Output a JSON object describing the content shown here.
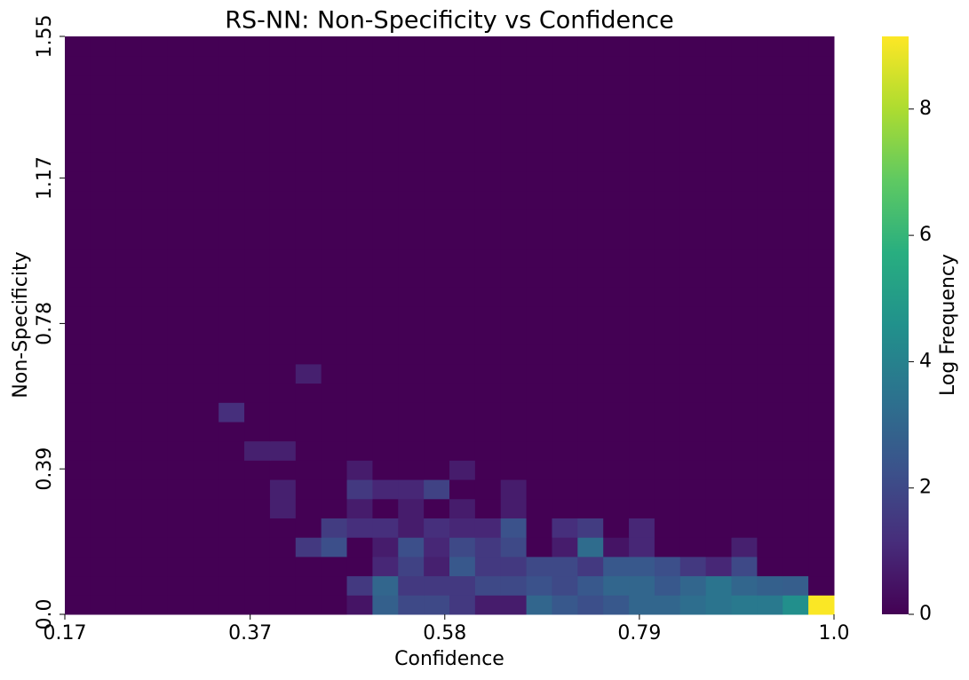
{
  "chart_data": {
    "type": "heatmap",
    "title": "RS-NN: Non-Specificity vs Confidence",
    "x_label": "Confidence",
    "y_label": "Non-Specificity",
    "colorbar_label": "Log Frequency",
    "colormap": "viridis",
    "xlim": [
      0.17,
      1.0
    ],
    "xticks": [
      0.17,
      0.37,
      0.58,
      0.79,
      {
        "value": 1.0,
        "label": "1.0"
      }
    ],
    "ylim": [
      0,
      1.55
    ],
    "yticks": [
      {
        "value": 0,
        "label": "0.0"
      },
      0.39,
      0.78,
      1.17,
      1.55
    ],
    "zlim": [
      0,
      9.15
    ],
    "zticks": [
      0,
      2,
      4,
      6,
      8
    ],
    "z": [
      [
        0,
        0,
        0,
        0,
        0,
        0,
        0,
        0,
        0,
        0,
        0,
        0.5,
        2.8,
        2,
        2,
        1.5,
        0.7,
        0.7,
        3,
        2.5,
        2.2,
        2.5,
        3,
        3,
        3.3,
        3.5,
        3.7,
        3.7,
        4.5,
        9.1
      ],
      [
        0,
        0,
        0,
        0,
        0,
        0,
        0,
        0,
        0,
        0,
        0,
        1.5,
        3,
        1.5,
        1.5,
        1.5,
        2,
        2,
        2.3,
        2,
        2.5,
        3,
        3,
        2.5,
        3,
        3.5,
        3,
        2.8,
        2.7,
        0
      ],
      [
        0,
        0,
        0,
        0,
        0,
        0,
        0,
        0,
        0,
        0,
        0,
        0,
        1,
        1.8,
        0.8,
        2.5,
        1.5,
        1.5,
        2,
        2,
        1.5,
        2.5,
        2.5,
        2.2,
        1.5,
        1,
        2,
        0,
        0,
        0
      ],
      [
        0,
        0,
        0,
        0,
        0,
        0,
        0,
        0,
        0,
        1.5,
        2.2,
        0,
        0.7,
        2.2,
        1,
        2,
        1.5,
        2,
        0,
        0.7,
        3.2,
        0.5,
        1,
        0,
        0,
        0,
        0.8,
        0,
        0,
        0
      ],
      [
        0,
        0,
        0,
        0,
        0,
        0,
        0,
        0,
        0,
        0,
        1.6,
        1.2,
        1.2,
        0.7,
        1.2,
        1,
        1,
        2.3,
        0,
        1.2,
        1.6,
        0,
        1,
        0,
        0,
        0,
        0,
        0,
        0,
        0
      ],
      [
        0,
        0,
        0,
        0,
        0,
        0,
        0,
        0,
        0.8,
        0,
        0,
        0.7,
        0,
        0.7,
        0,
        0.7,
        0,
        0.7,
        0,
        0,
        0,
        0,
        0,
        0,
        0,
        0,
        0,
        0,
        0,
        0
      ],
      [
        0,
        0,
        0,
        0,
        0,
        0,
        0,
        0,
        0.8,
        0,
        0,
        1.5,
        1,
        1,
        1.8,
        0,
        0,
        0.7,
        0,
        0,
        0,
        0,
        0,
        0,
        0,
        0,
        0,
        0,
        0,
        0
      ],
      [
        0,
        0,
        0,
        0,
        0,
        0,
        0,
        0,
        0,
        0,
        0,
        0.7,
        0,
        0,
        0,
        0.7,
        0,
        0,
        0,
        0,
        0,
        0,
        0,
        0,
        0,
        0,
        0,
        0,
        0,
        0
      ],
      [
        0,
        0,
        0,
        0,
        0,
        0,
        0,
        0.8,
        0.8,
        0,
        0,
        0,
        0,
        0,
        0,
        0,
        0,
        0,
        0,
        0,
        0,
        0,
        0,
        0,
        0,
        0,
        0,
        0,
        0,
        0
      ],
      [
        0,
        0,
        0,
        0,
        0,
        0,
        0,
        0,
        0,
        0,
        0,
        0,
        0,
        0,
        0,
        0,
        0,
        0,
        0,
        0,
        0,
        0,
        0,
        0,
        0,
        0,
        0,
        0,
        0,
        0
      ],
      [
        0,
        0,
        0,
        0,
        0,
        0,
        1.2,
        0,
        0,
        0,
        0,
        0,
        0,
        0,
        0,
        0,
        0,
        0,
        0,
        0,
        0,
        0,
        0,
        0,
        0,
        0,
        0,
        0,
        0,
        0
      ],
      [
        0,
        0,
        0,
        0,
        0,
        0,
        0,
        0,
        0,
        0,
        0,
        0,
        0,
        0,
        0,
        0,
        0,
        0,
        0,
        0,
        0,
        0,
        0,
        0,
        0,
        0,
        0,
        0,
        0,
        0
      ],
      [
        0,
        0,
        0,
        0,
        0,
        0,
        0,
        0,
        0,
        0.8,
        0,
        0,
        0,
        0,
        0,
        0,
        0,
        0,
        0,
        0,
        0,
        0,
        0,
        0,
        0,
        0,
        0,
        0,
        0,
        0
      ],
      [
        0,
        0,
        0,
        0,
        0,
        0,
        0,
        0,
        0,
        0,
        0,
        0,
        0,
        0,
        0,
        0,
        0,
        0,
        0,
        0,
        0,
        0,
        0,
        0,
        0,
        0,
        0,
        0,
        0,
        0
      ],
      [
        0,
        0,
        0,
        0,
        0,
        0,
        0,
        0,
        0,
        0,
        0,
        0,
        0,
        0,
        0,
        0,
        0,
        0,
        0,
        0,
        0,
        0,
        0,
        0,
        0,
        0,
        0,
        0,
        0,
        0
      ],
      [
        0,
        0,
        0,
        0,
        0,
        0,
        0,
        0,
        0,
        0,
        0,
        0,
        0,
        0,
        0,
        0,
        0,
        0,
        0,
        0,
        0,
        0,
        0,
        0,
        0,
        0,
        0,
        0,
        0,
        0
      ],
      [
        0,
        0,
        0,
        0,
        0,
        0,
        0,
        0,
        0,
        0,
        0,
        0,
        0,
        0,
        0,
        0,
        0,
        0,
        0,
        0,
        0,
        0,
        0,
        0,
        0,
        0,
        0,
        0,
        0,
        0
      ],
      [
        0,
        0,
        0,
        0,
        0,
        0,
        0,
        0,
        0,
        0,
        0,
        0,
        0,
        0,
        0,
        0,
        0,
        0,
        0,
        0,
        0,
        0,
        0,
        0,
        0,
        0,
        0,
        0,
        0,
        0
      ],
      [
        0,
        0,
        0,
        0,
        0,
        0,
        0,
        0,
        0,
        0,
        0,
        0,
        0,
        0,
        0,
        0,
        0,
        0,
        0,
        0,
        0,
        0,
        0,
        0,
        0,
        0,
        0,
        0,
        0,
        0
      ],
      [
        0,
        0,
        0,
        0,
        0,
        0,
        0,
        0,
        0,
        0,
        0,
        0,
        0,
        0,
        0,
        0,
        0,
        0,
        0,
        0,
        0,
        0,
        0,
        0,
        0,
        0,
        0,
        0,
        0,
        0
      ],
      [
        0,
        0,
        0,
        0,
        0,
        0,
        0,
        0,
        0,
        0,
        0,
        0,
        0,
        0,
        0,
        0,
        0,
        0,
        0,
        0,
        0,
        0,
        0,
        0,
        0,
        0,
        0,
        0,
        0,
        0
      ],
      [
        0,
        0,
        0,
        0,
        0,
        0,
        0,
        0,
        0,
        0,
        0,
        0,
        0,
        0,
        0,
        0,
        0,
        0,
        0,
        0,
        0,
        0,
        0,
        0,
        0,
        0,
        0,
        0,
        0,
        0
      ],
      [
        0,
        0,
        0,
        0,
        0,
        0,
        0,
        0,
        0,
        0,
        0,
        0,
        0,
        0,
        0,
        0,
        0,
        0,
        0,
        0,
        0,
        0,
        0,
        0,
        0,
        0,
        0,
        0,
        0,
        0
      ],
      [
        0,
        0,
        0,
        0,
        0,
        0,
        0,
        0,
        0,
        0,
        0,
        0,
        0,
        0,
        0,
        0,
        0,
        0,
        0,
        0,
        0,
        0,
        0,
        0,
        0,
        0,
        0,
        0,
        0,
        0
      ],
      [
        0,
        0,
        0,
        0,
        0,
        0,
        0,
        0,
        0,
        0,
        0,
        0,
        0,
        0,
        0,
        0,
        0,
        0,
        0,
        0,
        0,
        0,
        0,
        0,
        0,
        0,
        0,
        0,
        0,
        0
      ],
      [
        0,
        0,
        0,
        0,
        0,
        0,
        0,
        0,
        0,
        0,
        0,
        0,
        0,
        0,
        0,
        0,
        0,
        0,
        0,
        0,
        0,
        0,
        0,
        0,
        0,
        0,
        0,
        0,
        0,
        0
      ],
      [
        0,
        0,
        0,
        0,
        0,
        0,
        0,
        0,
        0,
        0,
        0,
        0,
        0,
        0,
        0,
        0,
        0,
        0,
        0,
        0,
        0,
        0,
        0,
        0,
        0,
        0,
        0,
        0,
        0,
        0
      ],
      [
        0,
        0,
        0,
        0,
        0,
        0,
        0,
        0,
        0,
        0,
        0,
        0,
        0,
        0,
        0,
        0,
        0,
        0,
        0,
        0,
        0,
        0,
        0,
        0,
        0,
        0,
        0,
        0,
        0,
        0
      ],
      [
        0,
        0,
        0,
        0,
        0,
        0,
        0,
        0,
        0,
        0,
        0,
        0,
        0,
        0,
        0,
        0,
        0,
        0,
        0,
        0,
        0,
        0,
        0,
        0,
        0,
        0,
        0,
        0,
        0,
        0
      ],
      [
        0,
        0,
        0,
        0,
        0,
        0,
        0,
        0,
        0,
        0,
        0,
        0,
        0,
        0,
        0,
        0,
        0,
        0,
        0,
        0,
        0,
        0,
        0,
        0,
        0,
        0,
        0,
        0,
        0,
        0
      ]
    ]
  }
}
